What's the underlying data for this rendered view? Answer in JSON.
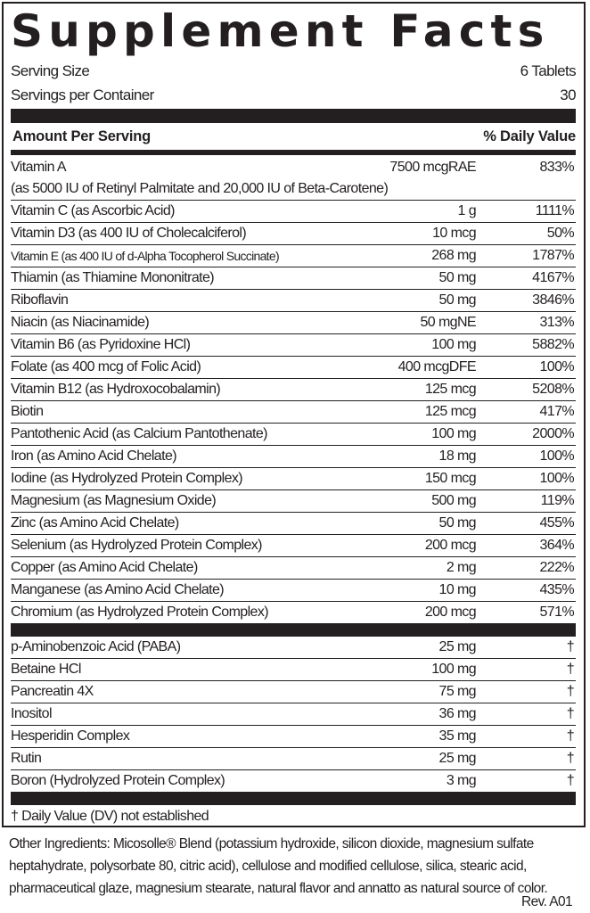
{
  "title": "Supplement Facts",
  "serving_size": {
    "label": "Serving Size",
    "value": "6 Tablets"
  },
  "servings_per_container": {
    "label": "Servings per Container",
    "value": "30"
  },
  "header": {
    "amount": "Amount Per Serving",
    "dv": "% Daily Value"
  },
  "vitamin_a": {
    "name": "Vitamin A",
    "amount": "7500 mcgRAE",
    "dv": "833%",
    "note": "(as 5000 IU of Retinyl Palmitate and 20,000 IU of Beta-Carotene)"
  },
  "nutrients": [
    {
      "name": "Vitamin C (as Ascorbic Acid)",
      "amount": "1 g",
      "dv": "1111%"
    },
    {
      "name": "Vitamin D3 (as 400 IU of Cholecalciferol)",
      "amount": "10 mcg",
      "dv": "50%"
    },
    {
      "name": "Vitamin E (as 400 IU of d-Alpha Tocopherol Succinate)",
      "amount": "268 mg",
      "dv": "1787%"
    },
    {
      "name": "Thiamin (as Thiamine Mononitrate)",
      "amount": "50 mg",
      "dv": "4167%"
    },
    {
      "name": "Riboflavin",
      "amount": "50 mg",
      "dv": "3846%"
    },
    {
      "name": "Niacin (as Niacinamide)",
      "amount": "50 mgNE",
      "dv": "313%"
    },
    {
      "name": "Vitamin B6 (as Pyridoxine HCl)",
      "amount": "100 mg",
      "dv": "5882%"
    },
    {
      "name": "Folate (as 400 mcg of Folic Acid)",
      "amount": "400 mcgDFE",
      "dv": "100%"
    },
    {
      "name": "Vitamin B12 (as Hydroxocobalamin)",
      "amount": "125 mcg",
      "dv": "5208%"
    },
    {
      "name": "Biotin",
      "amount": "125 mcg",
      "dv": "417%"
    },
    {
      "name": "Pantothenic Acid (as Calcium Pantothenate)",
      "amount": "100 mg",
      "dv": "2000%"
    },
    {
      "name": "Iron (as Amino Acid Chelate)",
      "amount": "18 mg",
      "dv": "100%"
    },
    {
      "name": "Iodine (as Hydrolyzed Protein Complex)",
      "amount": "150 mcg",
      "dv": "100%"
    },
    {
      "name": "Magnesium (as Magnesium Oxide)",
      "amount": "500 mg",
      "dv": "119%"
    },
    {
      "name": "Zinc (as Amino Acid Chelate)",
      "amount": "50 mg",
      "dv": "455%"
    },
    {
      "name": "Selenium (as Hydrolyzed Protein Complex)",
      "amount": "200 mcg",
      "dv": "364%"
    },
    {
      "name": "Copper (as Amino Acid Chelate)",
      "amount": "2 mg",
      "dv": "222%"
    },
    {
      "name": "Manganese (as Amino Acid Chelate)",
      "amount": "10 mg",
      "dv": "435%"
    },
    {
      "name": "Chromium (as Hydrolyzed Protein Complex)",
      "amount": "200 mcg",
      "dv": "571%"
    }
  ],
  "other_nutrients": [
    {
      "name": "p-Aminobenzoic Acid (PABA)",
      "amount": "25 mg",
      "dv": "†"
    },
    {
      "name": "Betaine HCl",
      "amount": "100 mg",
      "dv": "†"
    },
    {
      "name": "Pancreatin 4X",
      "amount": "75 mg",
      "dv": "†"
    },
    {
      "name": "Inositol",
      "amount": "36 mg",
      "dv": "†"
    },
    {
      "name": "Hesperidin Complex",
      "amount": "35 mg",
      "dv": "†"
    },
    {
      "name": "Rutin",
      "amount": "25 mg",
      "dv": "†"
    },
    {
      "name": "Boron (Hydrolyzed Protein Complex)",
      "amount": "3 mg",
      "dv": "†"
    }
  ],
  "footnote": "† Daily Value (DV) not established",
  "other_ingredients": "Other Ingredients: Micosolle® Blend (potassium hydroxide, silicon dioxide, magnesium sulfate heptahydrate, polysorbate 80, citric acid), cellulose and modified cellulose, silica, stearic acid, pharmaceutical glaze, magnesium stearate, natural flavor and annatto as natural source of color.",
  "revision": "Rev. A01"
}
